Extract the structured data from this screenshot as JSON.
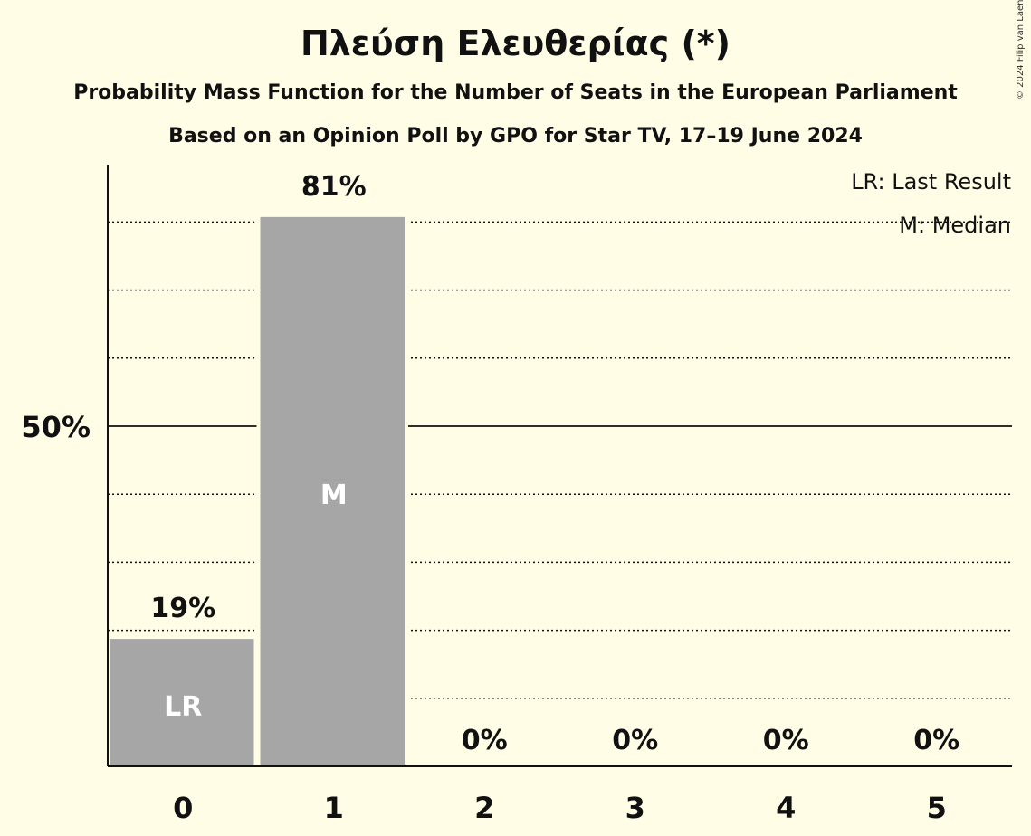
{
  "title": "Πλεύση Ελευθερίας (*)",
  "subtitle1": "Probability Mass Function for the Number of Seats in the European Parliament",
  "subtitle2": "Based on an Opinion Poll by GPO for Star TV, 17–19 June 2024",
  "copyright": "© 2024 Filip van Laenen",
  "legend": {
    "lr": "LR: Last Result",
    "median": "M: Median"
  },
  "colors": {
    "background": "#fffde6",
    "bar": "#a6a6a6",
    "text": "#111111"
  },
  "chart_data": {
    "type": "bar",
    "categories": [
      "0",
      "1",
      "2",
      "3",
      "4",
      "5"
    ],
    "values": [
      19,
      81,
      0,
      0,
      0,
      0
    ],
    "value_labels": [
      "19%",
      "81%",
      "0%",
      "0%",
      "0%",
      "0%"
    ],
    "bar_markers": [
      "LR",
      "M",
      "",
      "",
      "",
      ""
    ],
    "ylim": [
      0,
      88
    ],
    "ytick_label": "50%",
    "ytick_value": 50,
    "gridlines": [
      10,
      20,
      30,
      40,
      60,
      70,
      80
    ],
    "legend_placement": "top-right",
    "grid": true
  }
}
